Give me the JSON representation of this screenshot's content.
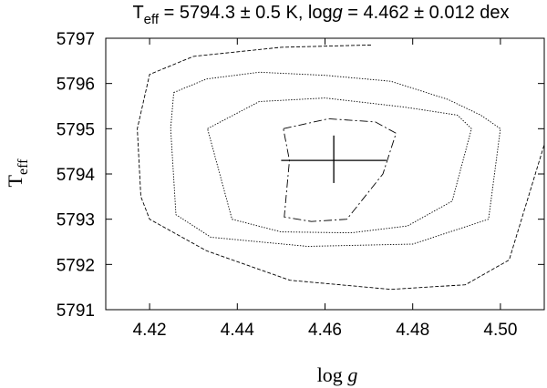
{
  "chart_data": {
    "type": "line",
    "title": {
      "t_label": "T",
      "t_sub": "eff",
      "t_rest": " = 5794.3 ± 0.5 K, log",
      "g_italic": "g",
      "g_rest": " = 4.462 ± 0.012 dex"
    },
    "xlabel": {
      "prefix": "log ",
      "italic": "g"
    },
    "ylabel": {
      "main": "T",
      "sub": "eff"
    },
    "xlim": [
      4.41,
      4.51
    ],
    "ylim": [
      5791,
      5797
    ],
    "xticks": [
      4.42,
      4.44,
      4.46,
      4.48,
      4.5
    ],
    "xtick_labels": [
      "4.42",
      "4.44",
      "4.46",
      "4.48",
      "4.50"
    ],
    "yticks": [
      5791,
      5792,
      5793,
      5794,
      5795,
      5796,
      5797
    ],
    "ytick_labels": [
      "5791",
      "5792",
      "5793",
      "5794",
      "5795",
      "5796",
      "5797"
    ],
    "grid": false,
    "legend": "none",
    "best_fit": {
      "x": 4.462,
      "y": 5794.3,
      "x_range": [
        4.45,
        4.474
      ],
      "y_range": [
        5793.8,
        5794.85
      ]
    },
    "series": [
      {
        "style": "dash-dot",
        "x": [
          4.4505,
          4.4608,
          4.4715,
          4.4762,
          4.4732,
          4.465,
          4.4569,
          4.4507,
          4.4519,
          4.4505
        ],
        "y": [
          5795.0,
          5795.22,
          5795.15,
          5794.9,
          5794.0,
          5793.0,
          5792.95,
          5793.05,
          5794.3,
          5795.0
        ]
      },
      {
        "style": "dotted",
        "x": [
          4.4332,
          4.445,
          4.46,
          4.478,
          4.4902,
          4.4934,
          4.489,
          4.4788,
          4.466,
          4.45,
          4.4388,
          4.4332
        ],
        "y": [
          5795.0,
          5795.6,
          5795.68,
          5795.48,
          5795.3,
          5795.0,
          5793.4,
          5792.85,
          5792.7,
          5792.72,
          5793.0,
          5795.0
        ]
      },
      {
        "style": "dotted",
        "x": [
          4.4255,
          4.433,
          4.445,
          4.46,
          4.475,
          4.488,
          4.4955,
          4.5,
          4.4973,
          4.48,
          4.456,
          4.434,
          4.426,
          4.4248,
          4.4255
        ],
        "y": [
          5795.8,
          5796.1,
          5796.25,
          5796.18,
          5796.05,
          5795.65,
          5795.3,
          5795.0,
          5793.0,
          5792.45,
          5792.4,
          5792.6,
          5793.1,
          5795.0,
          5795.8
        ]
      },
      {
        "style": "dashed",
        "x": [
          4.4705,
          4.45,
          4.43,
          4.42,
          4.4172,
          4.418,
          4.42,
          4.433,
          4.452,
          4.475,
          4.492,
          4.502,
          4.51
        ],
        "y": [
          5796.85,
          5796.8,
          5796.6,
          5796.2,
          5795.0,
          5793.5,
          5793.0,
          5792.3,
          5791.65,
          5791.45,
          5791.55,
          5792.1,
          5794.65
        ]
      }
    ]
  }
}
